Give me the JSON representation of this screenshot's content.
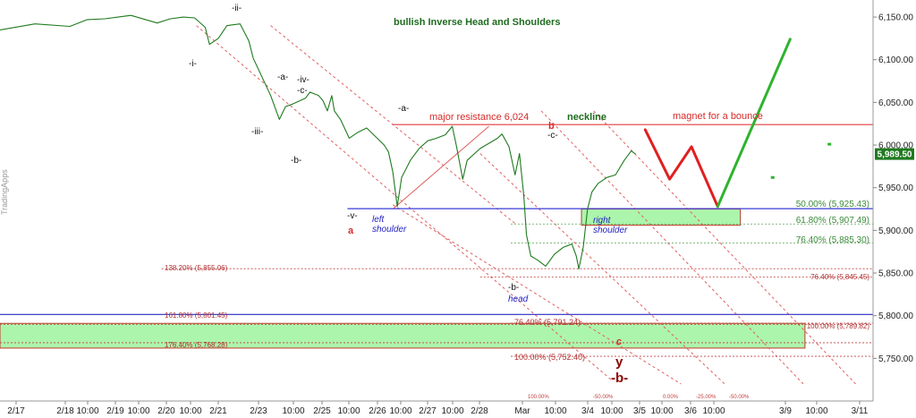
{
  "chart_data": {
    "type": "line",
    "title": "bullish Inverse Head and Shoulders",
    "watermark": "TradingApps",
    "price_axis": {
      "ylim": [
        5700,
        6170
      ],
      "ticks": [
        {
          "value": 6150,
          "label": "6,150.00"
        },
        {
          "value": 6100,
          "label": "6,100.00"
        },
        {
          "value": 6050,
          "label": "6,050.00"
        },
        {
          "value": 6000,
          "label": "6,000.00"
        },
        {
          "value": 5950,
          "label": "5,950.00"
        },
        {
          "value": 5900,
          "label": "5,900.00"
        },
        {
          "value": 5850,
          "label": "5,850.00"
        },
        {
          "value": 5800,
          "label": "5,800.00"
        },
        {
          "value": 5750,
          "label": "5,750.00"
        }
      ],
      "last_price": {
        "value": 5989.5,
        "label": "5,989.50"
      }
    },
    "time_axis": {
      "ticks": [
        "2/17",
        "2/18",
        "10:00",
        "2/19",
        "10:00",
        "2/20",
        "10:00",
        "2/21",
        "2/23",
        "10:00",
        "2/25",
        "10:00",
        "2/26",
        "10:00",
        "2/27",
        "10:00",
        "2/28",
        "Mar",
        "10:00",
        "3/4",
        "10:00",
        "3/5",
        "10:00",
        "3/6",
        "10:00",
        "3/9",
        "10:00",
        "3/11"
      ]
    },
    "price_series": [
      [
        0,
        6135
      ],
      [
        4,
        6142
      ],
      [
        8,
        6139
      ],
      [
        10,
        6147
      ],
      [
        12,
        6148
      ],
      [
        15,
        6152
      ],
      [
        18,
        6143
      ],
      [
        19.5,
        6148
      ],
      [
        21,
        6150
      ],
      [
        22.3,
        6149
      ],
      [
        23.5,
        6138
      ],
      [
        24,
        6118
      ],
      [
        25,
        6125
      ],
      [
        26,
        6140
      ],
      [
        27.5,
        6142
      ],
      [
        28.5,
        6122
      ],
      [
        29,
        6102
      ],
      [
        30,
        6080
      ],
      [
        31,
        6058
      ],
      [
        32,
        6030
      ],
      [
        32.7,
        6045
      ],
      [
        33.5,
        6048
      ],
      [
        35,
        6055
      ],
      [
        35.5,
        6062
      ],
      [
        36.5,
        6058
      ],
      [
        37,
        6052
      ],
      [
        37.5,
        6040
      ],
      [
        38,
        6058
      ],
      [
        38.3,
        6040
      ],
      [
        39,
        6030
      ],
      [
        40,
        6008
      ],
      [
        41,
        6015
      ],
      [
        42,
        6020
      ],
      [
        43,
        6010
      ],
      [
        44,
        6000
      ],
      [
        44.5,
        5992
      ],
      [
        45,
        5968
      ],
      [
        45.5,
        5928
      ],
      [
        46,
        5962
      ],
      [
        47,
        5982
      ],
      [
        48,
        5996
      ],
      [
        49,
        6005
      ],
      [
        50,
        6008
      ],
      [
        51,
        6012
      ],
      [
        51.8,
        6022
      ],
      [
        52.3,
        5998
      ],
      [
        53,
        5960
      ],
      [
        53.5,
        5982
      ],
      [
        55,
        5996
      ],
      [
        56,
        6002
      ],
      [
        57,
        6008
      ],
      [
        57.5,
        6013
      ],
      [
        58.3,
        5998
      ],
      [
        59,
        5965
      ],
      [
        59.5,
        5990
      ],
      [
        60,
        5940
      ],
      [
        60.3,
        5895
      ],
      [
        60.8,
        5870
      ],
      [
        61.6,
        5865
      ],
      [
        62.5,
        5858
      ],
      [
        63.5,
        5872
      ],
      [
        64.5,
        5880
      ],
      [
        65.5,
        5884
      ],
      [
        66,
        5870
      ],
      [
        66.3,
        5855
      ],
      [
        66.8,
        5880
      ],
      [
        67.3,
        5925
      ],
      [
        67.8,
        5945
      ],
      [
        68.5,
        5955
      ],
      [
        69.5,
        5962
      ],
      [
        70.5,
        5965
      ],
      [
        71.5,
        5982
      ],
      [
        72.3,
        5993
      ],
      [
        72.8,
        5989.5
      ]
    ],
    "projection_red": [
      [
        73.9,
        6018
      ],
      [
        76.7,
        5960
      ],
      [
        79.2,
        5998
      ],
      [
        82.2,
        5928
      ]
    ],
    "projection_green": [
      [
        82.2,
        5928
      ],
      [
        90.5,
        6124
      ]
    ],
    "dots": [
      [
        95,
        6001
      ],
      [
        88.5,
        5962
      ]
    ],
    "hlines": [
      {
        "value": 6024,
        "color": "#e23b3b",
        "style": "solid"
      },
      {
        "value": 5925.43,
        "color": "#3b3bd8",
        "style": "solid"
      },
      {
        "value": 5801.45,
        "color": "#2a2ac4",
        "style": "solid"
      },
      {
        "value": 5907.49,
        "color": "#5aa15a",
        "style": "dotted"
      },
      {
        "value": 5885.3,
        "color": "#5aa15a",
        "style": "dotted"
      },
      {
        "value": 5855.06,
        "color": "#c04040",
        "style": "dotted"
      },
      {
        "value": 5845.45,
        "color": "#c04040",
        "style": "dotted"
      },
      {
        "value": 5789.82,
        "color": "#c04040",
        "style": "dotted"
      },
      {
        "value": 5791.24,
        "color": "#c04040",
        "style": "dotted"
      },
      {
        "value": 5768.28,
        "color": "#c04040",
        "style": "dotted"
      },
      {
        "value": 5752.4,
        "color": "#c04040",
        "style": "dotted"
      }
    ],
    "zones": [
      {
        "x0": 66.6,
        "x1": 84.8,
        "y0": 5906,
        "y1": 5925
      },
      {
        "x0": 0,
        "x1": 92.2,
        "y0": 5762,
        "y1": 5791
      }
    ],
    "channel_lines": [
      [
        [
          31,
          6140
        ],
        [
          59,
          5908
        ]
      ],
      [
        [
          22.5,
          6140
        ],
        [
          70,
          5725
        ]
      ],
      [
        [
          45,
          5930
        ],
        [
          78,
          5720
        ]
      ],
      [
        [
          55,
          5990
        ],
        [
          83,
          5720
        ]
      ],
      [
        [
          62,
          6040
        ],
        [
          92,
          5720
        ]
      ],
      [
        [
          68,
          6040
        ],
        [
          98,
          5720
        ]
      ],
      [
        [
          45,
          5925
        ],
        [
          56,
          6022
        ]
      ]
    ],
    "annotations": {
      "neckline": "neckline",
      "magnet": "magnet for a bounce",
      "major_resistance": "major resistance 6,024",
      "left_shoulder": "left\nshoulder",
      "head": "head",
      "right_shoulder": "right\nshoulder",
      "fib_50": "50.00% (5,925.43)",
      "fib_618": "61.80% (5,907.49)",
      "fib_764": "76.40% (5,885.30)",
      "fib_1382": "138.20% (5,855.06)",
      "fib_764b": "76.40% (5,845.45)",
      "fib_1618": "161.80% (5,801.45)",
      "fib_100a": "100.00% (5,789.82)",
      "fib_764c": "76.40% (5,791.24)",
      "fib_1764": "176.40% (5,768.28)",
      "fib_100b": "100.00% (5,752.40)",
      "wave_i": "-i-",
      "wave_ii": "-ii-",
      "wave_iii": "-iii-",
      "wave_iv": "-iv-",
      "wave_v": "-v-",
      "wave_a1": "-a-",
      "wave_c1": "-c-",
      "wave_b1": "-b-",
      "wave_a2": "-a-",
      "wave_b_head": "-b-",
      "wave_c2": "-c-",
      "red_a": "a",
      "red_b": "b",
      "red_c": "c",
      "y_label": "y",
      "b_big": "-b-",
      "ch_100": "100.00%",
      "ch_50": "-50.00%",
      "ch_0": "0.00%",
      "ch_25": "-25.00%",
      "ch_n50": "-50.00%"
    }
  }
}
